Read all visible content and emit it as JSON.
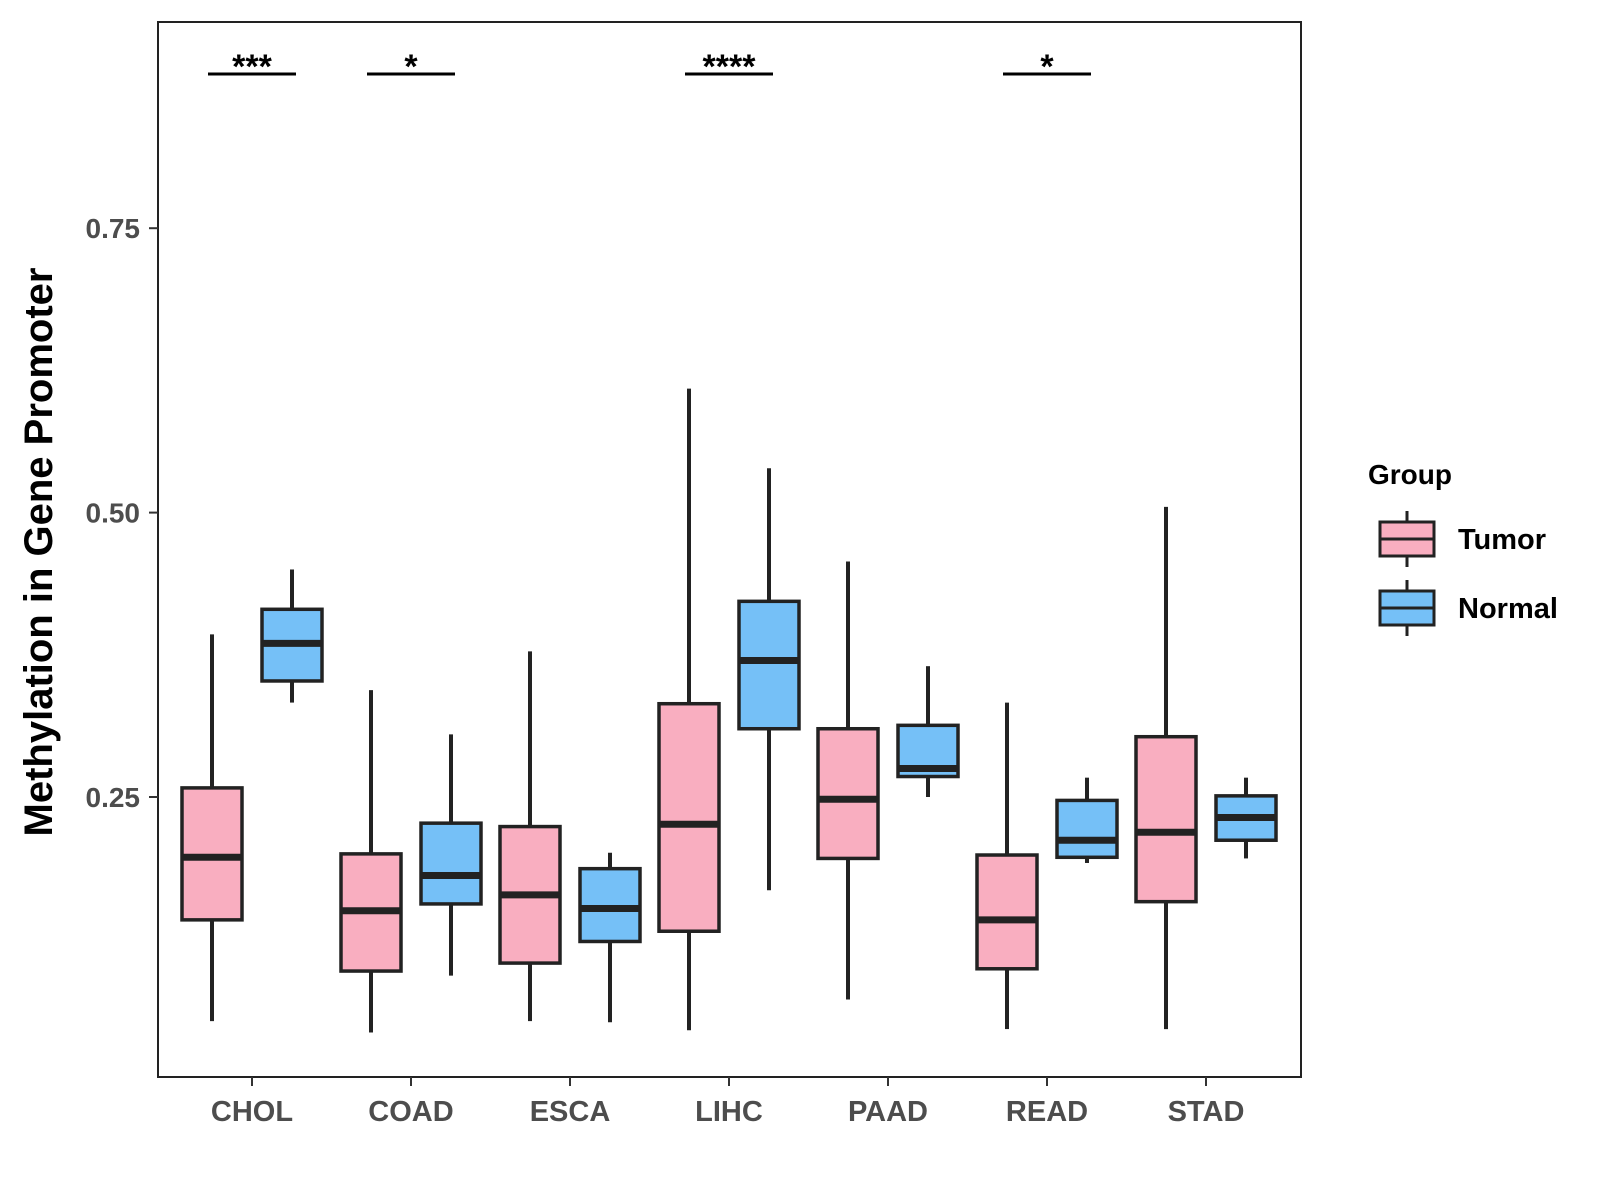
{
  "chart_data": {
    "type": "box",
    "ylabel": "Methylation in Gene Promoter",
    "xlabel": "",
    "ylim": [
      0.01,
      0.94
    ],
    "yticks": [
      0.25,
      0.5,
      0.75
    ],
    "ytick_labels": [
      "0.25",
      "0.50",
      "0.75"
    ],
    "categories": [
      "CHOL",
      "COAD",
      "ESCA",
      "LIHC",
      "PAAD",
      "READ",
      "STAD"
    ],
    "legend": {
      "title": "Group",
      "position": "right",
      "entries": [
        {
          "name": "Tumor",
          "color": "#f9aec0"
        },
        {
          "name": "Normal",
          "color": "#75c0f7"
        }
      ]
    },
    "series": [
      {
        "name": "Tumor",
        "color": "#f9aec0",
        "boxes": [
          {
            "category": "CHOL",
            "whisker_low": 0.053,
            "q1": 0.142,
            "median": 0.197,
            "q3": 0.258,
            "whisker_high": 0.393
          },
          {
            "category": "COAD",
            "whisker_low": 0.043,
            "q1": 0.097,
            "median": 0.15,
            "q3": 0.2,
            "whisker_high": 0.344
          },
          {
            "category": "ESCA",
            "whisker_low": 0.053,
            "q1": 0.104,
            "median": 0.164,
            "q3": 0.224,
            "whisker_high": 0.378
          },
          {
            "category": "LIHC",
            "whisker_low": 0.045,
            "q1": 0.132,
            "median": 0.226,
            "q3": 0.332,
            "whisker_high": 0.609
          },
          {
            "category": "PAAD",
            "whisker_low": 0.072,
            "q1": 0.196,
            "median": 0.248,
            "q3": 0.31,
            "whisker_high": 0.457
          },
          {
            "category": "READ",
            "whisker_low": 0.046,
            "q1": 0.099,
            "median": 0.142,
            "q3": 0.199,
            "whisker_high": 0.333
          },
          {
            "category": "STAD",
            "whisker_low": 0.046,
            "q1": 0.158,
            "median": 0.219,
            "q3": 0.303,
            "whisker_high": 0.505
          }
        ]
      },
      {
        "name": "Normal",
        "color": "#75c0f7",
        "boxes": [
          {
            "category": "CHOL",
            "whisker_low": 0.333,
            "q1": 0.352,
            "median": 0.385,
            "q3": 0.415,
            "whisker_high": 0.45
          },
          {
            "category": "COAD",
            "whisker_low": 0.093,
            "q1": 0.156,
            "median": 0.181,
            "q3": 0.227,
            "whisker_high": 0.305
          },
          {
            "category": "ESCA",
            "whisker_low": 0.052,
            "q1": 0.123,
            "median": 0.152,
            "q3": 0.187,
            "whisker_high": 0.201
          },
          {
            "category": "LIHC",
            "whisker_low": 0.168,
            "q1": 0.31,
            "median": 0.37,
            "q3": 0.422,
            "whisker_high": 0.539
          },
          {
            "category": "PAAD",
            "whisker_low": 0.25,
            "q1": 0.268,
            "median": 0.275,
            "q3": 0.313,
            "whisker_high": 0.365
          },
          {
            "category": "READ",
            "whisker_low": 0.192,
            "q1": 0.197,
            "median": 0.212,
            "q3": 0.247,
            "whisker_high": 0.267
          },
          {
            "category": "STAD",
            "whisker_low": 0.196,
            "q1": 0.212,
            "median": 0.232,
            "q3": 0.251,
            "whisker_high": 0.267
          }
        ]
      }
    ],
    "significance": [
      {
        "category": "CHOL",
        "label": "***"
      },
      {
        "category": "COAD",
        "label": "*"
      },
      {
        "category": "LIHC",
        "label": "****"
      },
      {
        "category": "READ",
        "label": "*"
      }
    ],
    "grid": false
  }
}
